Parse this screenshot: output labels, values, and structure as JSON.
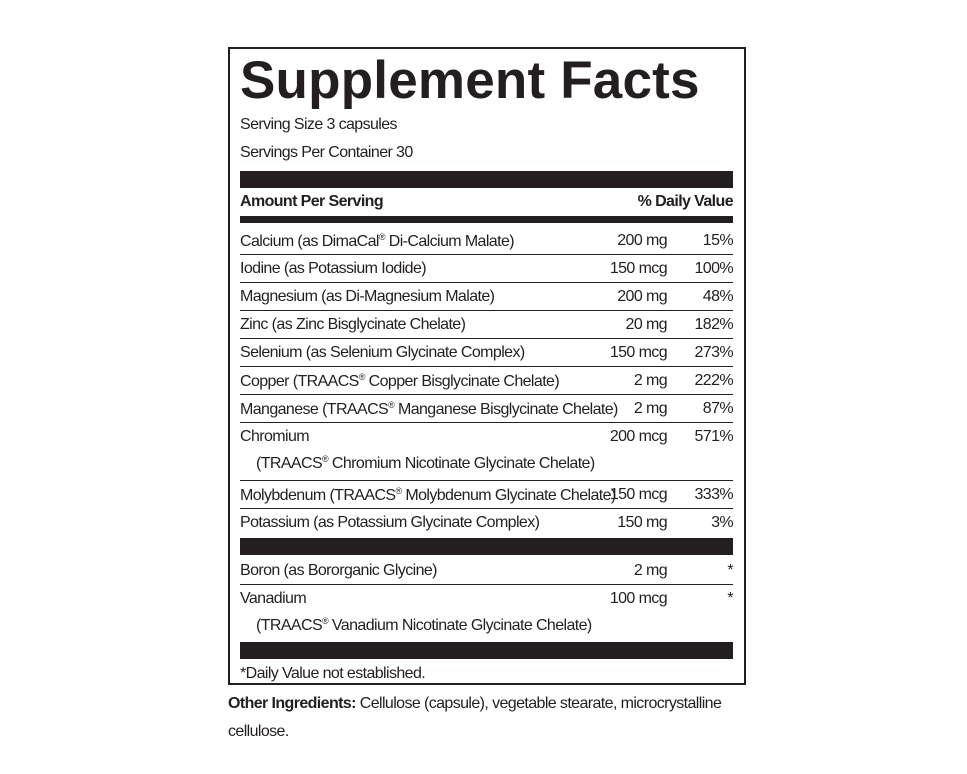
{
  "title": "Supplement Facts",
  "serving_size": "Serving Size 3 capsules",
  "servings_per_container": "Servings Per Container 30",
  "header": {
    "amount": "Amount Per Serving",
    "dv": "% Daily Value"
  },
  "nutrients": [
    {
      "name": "Calcium (as DimaCal® Di-Calcium Malate)",
      "amount": "200 mg",
      "dv": "15%"
    },
    {
      "name": "Iodine (as Potassium Iodide)",
      "amount": "150 mcg",
      "dv": "100%"
    },
    {
      "name": "Magnesium (as Di-Magnesium Malate)",
      "amount": "200 mg",
      "dv": "48%"
    },
    {
      "name": "Zinc (as Zinc Bisglycinate Chelate)",
      "amount": "20 mg",
      "dv": "182%"
    },
    {
      "name": "Selenium (as Selenium Glycinate Complex)",
      "amount": "150 mcg",
      "dv": "273%"
    },
    {
      "name": "Copper (TRAACS® Copper Bisglycinate Chelate)",
      "amount": "2 mg",
      "dv": "222%"
    },
    {
      "name": "Manganese (TRAACS® Manganese Bisglycinate Chelate)",
      "amount": "2 mg",
      "dv": "87%"
    },
    {
      "name": "Chromium",
      "sub": "(TRAACS® Chromium Nicotinate Glycinate Chelate)",
      "amount": "200 mcg",
      "dv": "571%"
    },
    {
      "name": "Molybdenum (TRAACS® Molybdenum Glycinate Chelate)",
      "amount": "150 mcg",
      "dv": "333%"
    },
    {
      "name": "Potassium (as Potassium Glycinate Complex)",
      "amount": "150 mg",
      "dv": "3%"
    }
  ],
  "other_nutrients": [
    {
      "name": "Boron (as Bororganic Glycine)",
      "amount": "2 mg",
      "dv": "*"
    },
    {
      "name": "Vanadium",
      "sub": "(TRAACS® Vanadium Nicotinate Glycinate Chelate)",
      "amount": "100 mcg",
      "dv": "*"
    }
  ],
  "footnote": "*Daily Value not established.",
  "other_ingredients": {
    "label": "Other Ingredients:",
    "text": " Cellulose (capsule), vegetable stearate, microcrystalline cellulose."
  }
}
